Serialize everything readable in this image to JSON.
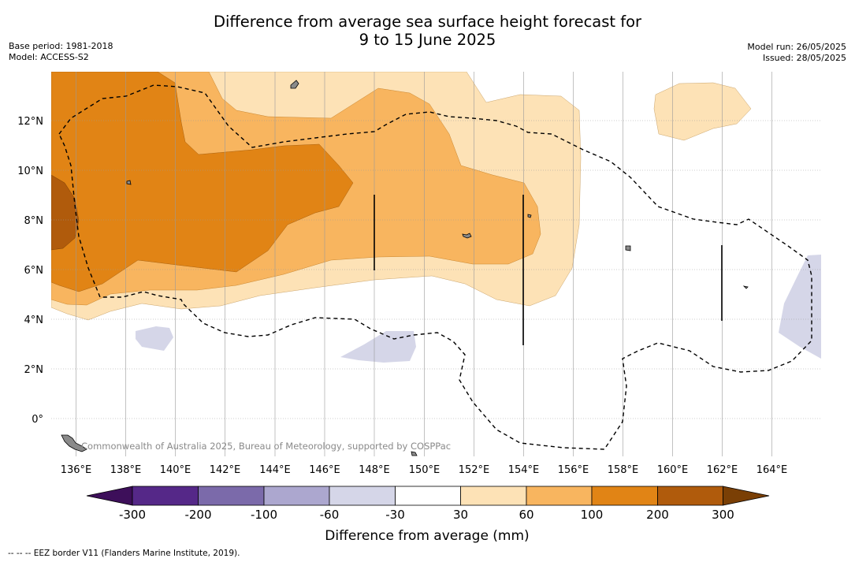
{
  "header": {
    "title_line1": "Difference from average sea surface height forecast for",
    "title_line2": "9 to 15 June 2025",
    "base_period": "Base period: 1981-2018",
    "model": "Model: ACCESS-S2",
    "model_run": "Model run: 26/05/2025",
    "issued": "Issued: 28/05/2025"
  },
  "map": {
    "copyright": "Commonwealth of Australia 2025, Bureau of Meteorology, supported by COSPPac",
    "lon_labels": [
      "136°E",
      "138°E",
      "140°E",
      "142°E",
      "144°E",
      "146°E",
      "148°E",
      "150°E",
      "152°E",
      "154°E",
      "156°E",
      "158°E",
      "160°E",
      "162°E",
      "164°E"
    ],
    "lat_labels": [
      "12°N",
      "10°N",
      "8°N",
      "6°N",
      "4°N",
      "2°N",
      "0°"
    ],
    "colors": {
      "neg300": "#3d0f5a",
      "neg200": "#552888",
      "neg100": "#7b6aaa",
      "neg60": "#aca7cf",
      "neg30": "#d5d6e8",
      "zero": "#ffffff",
      "pos30": "#fde2b6",
      "pos60": "#f8b55f",
      "pos100": "#e18415",
      "pos200": "#b05b0c",
      "pos300": "#7a3f05"
    }
  },
  "colorbar": {
    "labels": [
      "-300",
      "-200",
      "-100",
      "-60",
      "-30",
      "30",
      "60",
      "100",
      "200",
      "300"
    ],
    "title": "Difference from average (mm)"
  },
  "footnote": "--  --  -- EEZ border V11 (Flanders Marine Institute, 2019)."
}
